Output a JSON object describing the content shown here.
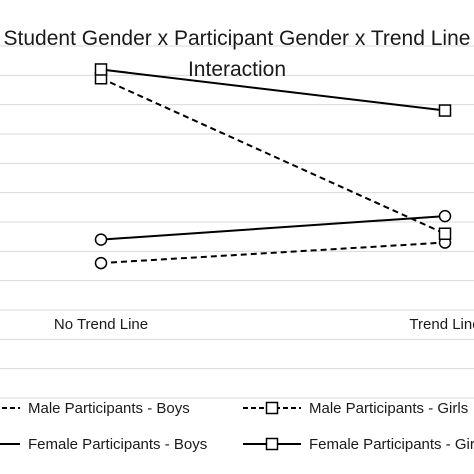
{
  "chart_data": {
    "type": "line",
    "title_lines": [
      "Student Gender x Participant Gender x Trend Line",
      "Interaction"
    ],
    "categories": [
      "No Trend Line",
      "Trend Line"
    ],
    "xlabel": "",
    "ylabel": "",
    "ylim": [
      0,
      12
    ],
    "y_gridlines": [
      0,
      1,
      2,
      3,
      4,
      5,
      6,
      7,
      8,
      9,
      10,
      11,
      12
    ],
    "grid": true,
    "legend_position": "bottom",
    "series": [
      {
        "name": "Male Participants - Boys",
        "values": [
          4.6,
          5.3
        ],
        "line_style": "dashed",
        "marker": "circle",
        "color": "#000000"
      },
      {
        "name": "Male Participants - Girls",
        "values": [
          10.9,
          5.6
        ],
        "line_style": "dashed",
        "marker": "square",
        "color": "#000000"
      },
      {
        "name": "Female Participants - Boys",
        "values": [
          5.4,
          6.2
        ],
        "line_style": "solid",
        "marker": "circle",
        "color": "#000000"
      },
      {
        "name": "Female Participants - Girls",
        "values": [
          11.2,
          9.8
        ],
        "line_style": "solid",
        "marker": "square",
        "color": "#000000"
      }
    ]
  }
}
